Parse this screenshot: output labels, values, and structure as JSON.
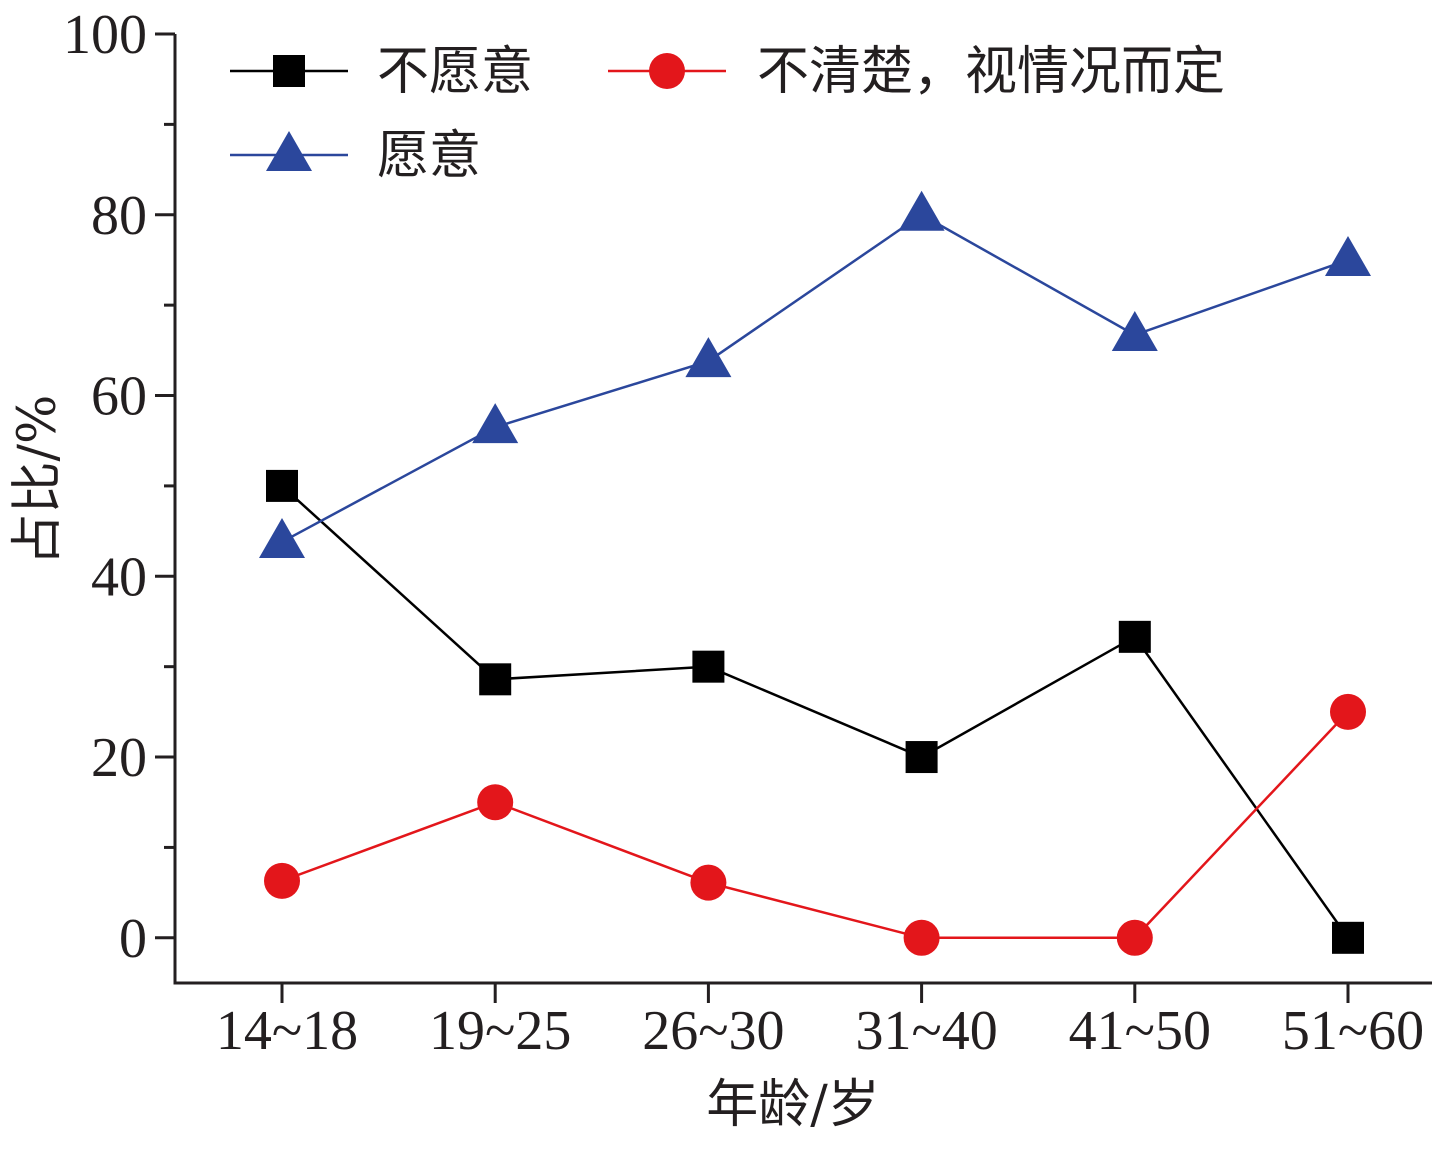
{
  "chart_data": {
    "type": "line",
    "title": "",
    "xlabel": "年龄/岁",
    "ylabel": "占比/%",
    "categories": [
      "14~18",
      "19~25",
      "26~30",
      "31~40",
      "41~50",
      "51~60"
    ],
    "ylim": [
      -5,
      100
    ],
    "yticks": [
      0,
      20,
      40,
      60,
      80,
      100
    ],
    "grid": false,
    "legend_position": "top-left",
    "series": [
      {
        "name": "不愿意",
        "marker": "square",
        "color": "#000000",
        "values": [
          50.0,
          28.6,
          30.0,
          20.0,
          33.3,
          0.0
        ]
      },
      {
        "name": "不清楚，视情况而定",
        "marker": "circle",
        "color": "#e3161b",
        "values": [
          6.3,
          15.0,
          6.1,
          0.0,
          0.0,
          25.0
        ]
      },
      {
        "name": "愿意",
        "marker": "triangle",
        "color": "#2b479c",
        "values": [
          43.8,
          56.5,
          63.8,
          80.0,
          66.7,
          75.0
        ]
      }
    ]
  }
}
